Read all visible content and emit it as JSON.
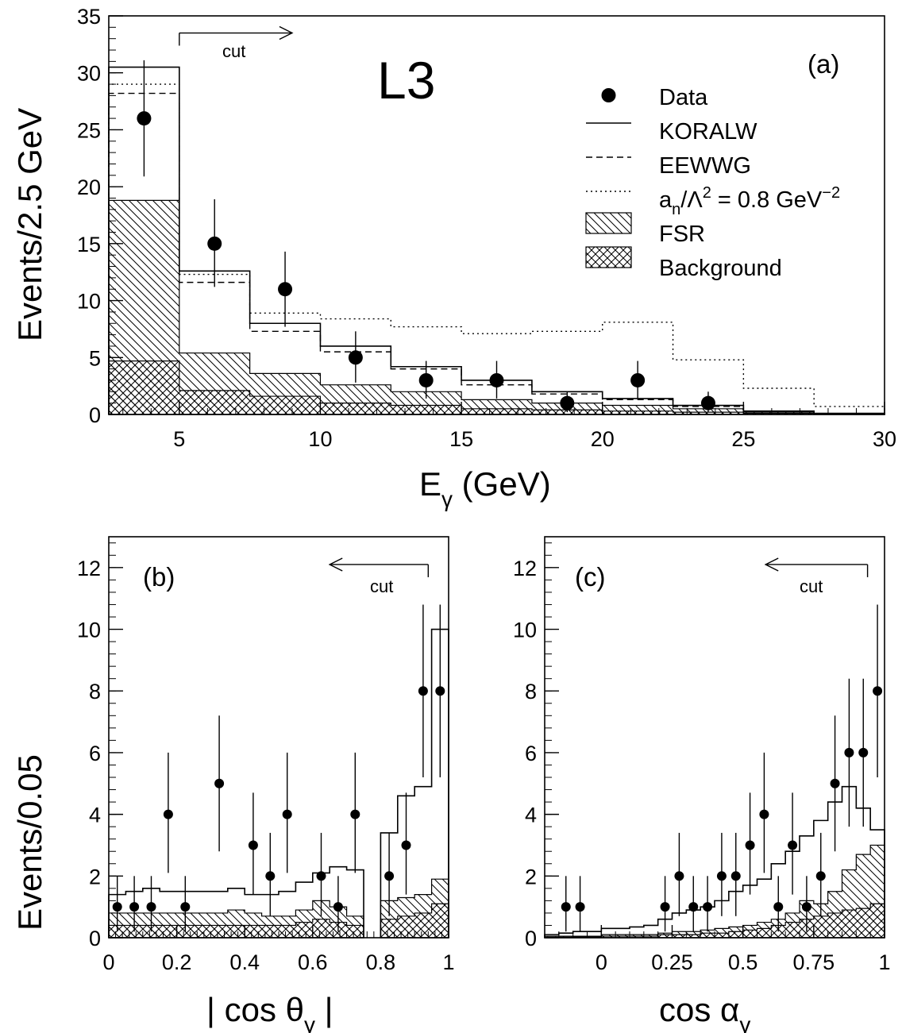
{
  "chart_data": [
    {
      "panel": "a",
      "type": "histogram",
      "xlabel": "E",
      "xlabel_sub": "γ",
      "xlabel_unit": " (GeV)",
      "ylabel": "Events/2.5 GeV",
      "xlim": [
        2.5,
        30
      ],
      "ylim": [
        0,
        35
      ],
      "xticks": [
        "5",
        "10",
        "15",
        "20",
        "25",
        "30"
      ],
      "yticks": [
        "0",
        "5",
        "10",
        "15",
        "20",
        "25",
        "30",
        "35"
      ],
      "experiment": "L3",
      "panel_label": "(a)",
      "cut": {
        "label": "cut",
        "direction": "right",
        "x_from": 5,
        "x_to": 9,
        "y": 33.5
      },
      "bin_edges": [
        2.5,
        5,
        7.5,
        10,
        12.5,
        15,
        17.5,
        20,
        22.5,
        25,
        27.5,
        30
      ],
      "series": [
        {
          "name": "KORALW",
          "style": "solid",
          "values": [
            30.5,
            12.6,
            8.0,
            6.0,
            4.2,
            3.0,
            2.0,
            1.4,
            0.8,
            0.3,
            0.1
          ]
        },
        {
          "name": "EEWWG",
          "style": "dashed",
          "values": [
            28.2,
            11.6,
            7.3,
            5.5,
            4.0,
            2.6,
            1.8,
            1.3,
            0.7,
            0.25,
            0.08
          ]
        },
        {
          "name": "a_n/Λ^2 = 0.8 GeV^-2",
          "style": "dotted",
          "values": [
            29.0,
            12.3,
            8.9,
            8.4,
            7.7,
            7.1,
            7.3,
            8.1,
            4.8,
            2.3,
            0.7
          ]
        },
        {
          "name": "FSR",
          "style": "hatched",
          "values": [
            18.8,
            5.4,
            3.6,
            2.6,
            2.0,
            1.3,
            1.0,
            0.8,
            0.5,
            0.2,
            0.05
          ]
        },
        {
          "name": "Background",
          "style": "crosshatched",
          "values": [
            4.7,
            2.1,
            1.6,
            1.0,
            0.8,
            0.5,
            0.4,
            0.3,
            0.2,
            0.1,
            0.02
          ]
        }
      ],
      "data_points": {
        "name": "Data",
        "x": [
          3.75,
          6.25,
          8.75,
          11.25,
          13.75,
          16.25,
          18.75,
          21.25,
          23.75
        ],
        "y": [
          26,
          15,
          11,
          5,
          3,
          3,
          1,
          3,
          1
        ],
        "err_low": [
          5.1,
          3.8,
          3.3,
          2.2,
          1.6,
          1.6,
          0.8,
          1.6,
          0.8
        ],
        "err_high": [
          5.1,
          3.9,
          3.3,
          2.3,
          1.7,
          1.7,
          1.0,
          1.7,
          1.0
        ]
      },
      "legend": [
        {
          "marker": "dot",
          "label": "Data"
        },
        {
          "marker": "solid",
          "label": "KORALW"
        },
        {
          "marker": "dashed",
          "label": "EEWWG"
        },
        {
          "marker": "dotted",
          "label_main": "a",
          "label_sub": "n",
          "label_mid": "/Λ",
          "label_sup": "2",
          "label_tail": " = 0.8 GeV",
          "label_sup2": "−2"
        },
        {
          "marker": "hatched",
          "label": "FSR"
        },
        {
          "marker": "crosshatched",
          "label": "Background"
        }
      ]
    },
    {
      "panel": "b",
      "type": "histogram",
      "xlabel": "| cos θ",
      "xlabel_sub": "γ",
      "xlabel_unit": " |",
      "ylabel": "Events/0.05",
      "xlim": [
        0,
        1
      ],
      "ylim": [
        0,
        13
      ],
      "xticks": [
        "0",
        "0.2",
        "0.4",
        "0.6",
        "0.8",
        "1"
      ],
      "yticks": [
        "0",
        "2",
        "4",
        "6",
        "8",
        "10",
        "12"
      ],
      "panel_label": "(b)",
      "cut": {
        "label": "cut",
        "direction": "left",
        "x_from": 0.94,
        "x_to": 0.65,
        "y": 12.1
      },
      "gap": [
        0.75,
        0.8
      ],
      "bin_edges": [
        0,
        0.05,
        0.1,
        0.15,
        0.2,
        0.25,
        0.3,
        0.35,
        0.4,
        0.45,
        0.5,
        0.55,
        0.6,
        0.65,
        0.7,
        0.75,
        0.8,
        0.85,
        0.9,
        0.95,
        1.0
      ],
      "series": [
        {
          "name": "KORALW",
          "style": "solid",
          "values": [
            1.4,
            1.5,
            1.6,
            1.5,
            1.5,
            1.5,
            1.5,
            1.6,
            1.4,
            1.4,
            1.5,
            1.8,
            2.1,
            2.3,
            2.2,
            null,
            3.4,
            4.6,
            4.9,
            10.0
          ]
        },
        {
          "name": "FSR",
          "style": "hatched",
          "values": [
            0.8,
            0.8,
            0.8,
            0.8,
            0.8,
            0.8,
            0.8,
            0.9,
            0.8,
            0.7,
            0.7,
            0.9,
            1.2,
            1.0,
            0.7,
            null,
            1.2,
            1.3,
            1.4,
            1.9
          ]
        },
        {
          "name": "Background",
          "style": "crosshatched",
          "values": [
            0.4,
            0.4,
            0.4,
            0.4,
            0.4,
            0.4,
            0.4,
            0.4,
            0.4,
            0.4,
            0.4,
            0.5,
            0.6,
            0.5,
            0.4,
            null,
            0.6,
            0.7,
            0.8,
            1.1
          ]
        }
      ],
      "data_points": {
        "name": "Data",
        "x": [
          0.025,
          0.075,
          0.125,
          0.175,
          0.225,
          0.325,
          0.425,
          0.475,
          0.525,
          0.625,
          0.675,
          0.725,
          0.825,
          0.875,
          0.925,
          0.975
        ],
        "y": [
          1,
          1,
          1,
          4,
          1,
          5,
          3,
          2,
          4,
          2,
          1,
          4,
          2,
          3,
          8,
          8
        ],
        "err_low": [
          0.8,
          0.8,
          0.8,
          1.9,
          0.8,
          2.2,
          1.6,
          1.3,
          1.9,
          1.3,
          0.8,
          1.9,
          1.3,
          1.6,
          2.8,
          2.8
        ],
        "err_high": [
          1.0,
          1.0,
          1.0,
          2.0,
          1.0,
          2.2,
          1.7,
          1.4,
          2.0,
          1.4,
          1.0,
          2.0,
          1.4,
          1.7,
          2.8,
          2.8
        ]
      }
    },
    {
      "panel": "c",
      "type": "histogram",
      "xlabel": "cos α",
      "xlabel_sub": "γ",
      "xlabel_unit": "",
      "ylabel": "",
      "xlim": [
        -0.2,
        1
      ],
      "ylim": [
        0,
        13
      ],
      "xticks": [
        "0",
        "0.25",
        "0.5",
        "0.75",
        "1"
      ],
      "xtick_values": [
        0,
        0.25,
        0.5,
        0.75,
        1
      ],
      "yticks": [
        "0",
        "2",
        "4",
        "6",
        "8",
        "10",
        "12"
      ],
      "panel_label": "(c)",
      "cut": {
        "label": "cut",
        "direction": "left",
        "x_from": 0.94,
        "x_to": 0.58,
        "y": 12.1
      },
      "bin_edges": [
        -0.2,
        -0.15,
        -0.1,
        -0.05,
        0,
        0.05,
        0.1,
        0.15,
        0.2,
        0.25,
        0.3,
        0.35,
        0.4,
        0.45,
        0.5,
        0.55,
        0.6,
        0.65,
        0.7,
        0.75,
        0.8,
        0.85,
        0.9,
        0.95,
        1.0
      ],
      "series": [
        {
          "name": "KORALW",
          "style": "solid",
          "values": [
            0.1,
            0.15,
            0.2,
            0.2,
            0.3,
            0.3,
            0.35,
            0.4,
            0.6,
            0.8,
            0.9,
            1.0,
            1.2,
            1.5,
            1.7,
            1.9,
            2.4,
            2.8,
            3.3,
            3.8,
            4.4,
            4.9,
            4.2,
            3.5
          ]
        },
        {
          "name": "FSR",
          "style": "hatched",
          "values": [
            0.05,
            0.05,
            0.05,
            0.05,
            0.1,
            0.1,
            0.1,
            0.1,
            0.15,
            0.2,
            0.2,
            0.25,
            0.3,
            0.35,
            0.4,
            0.5,
            0.6,
            0.8,
            1.2,
            1.1,
            1.5,
            2.2,
            2.7,
            3.0
          ]
        },
        {
          "name": "Background",
          "style": "crosshatched",
          "values": [
            0.02,
            0.02,
            0.03,
            0.03,
            0.05,
            0.05,
            0.05,
            0.05,
            0.1,
            0.1,
            0.1,
            0.15,
            0.15,
            0.2,
            0.25,
            0.3,
            0.4,
            0.5,
            0.6,
            0.7,
            0.8,
            0.9,
            0.95,
            1.1
          ]
        }
      ],
      "data_points": {
        "name": "Data",
        "x": [
          -0.125,
          -0.075,
          0.225,
          0.275,
          0.325,
          0.375,
          0.425,
          0.475,
          0.525,
          0.575,
          0.625,
          0.675,
          0.725,
          0.775,
          0.825,
          0.875,
          0.925,
          0.975
        ],
        "y": [
          1,
          1,
          1,
          2,
          1,
          1,
          2,
          2,
          3,
          4,
          1,
          3,
          1,
          2,
          5,
          6,
          6,
          8
        ],
        "err_low": [
          0.8,
          0.8,
          0.8,
          1.3,
          0.8,
          0.8,
          1.3,
          1.3,
          1.6,
          1.9,
          0.8,
          1.6,
          0.8,
          1.3,
          2.2,
          2.4,
          2.4,
          2.8
        ],
        "err_high": [
          1.0,
          1.0,
          1.0,
          1.4,
          1.0,
          1.0,
          1.4,
          1.4,
          1.7,
          2.0,
          1.0,
          1.7,
          1.0,
          1.4,
          2.2,
          2.4,
          2.4,
          2.8
        ]
      }
    }
  ]
}
